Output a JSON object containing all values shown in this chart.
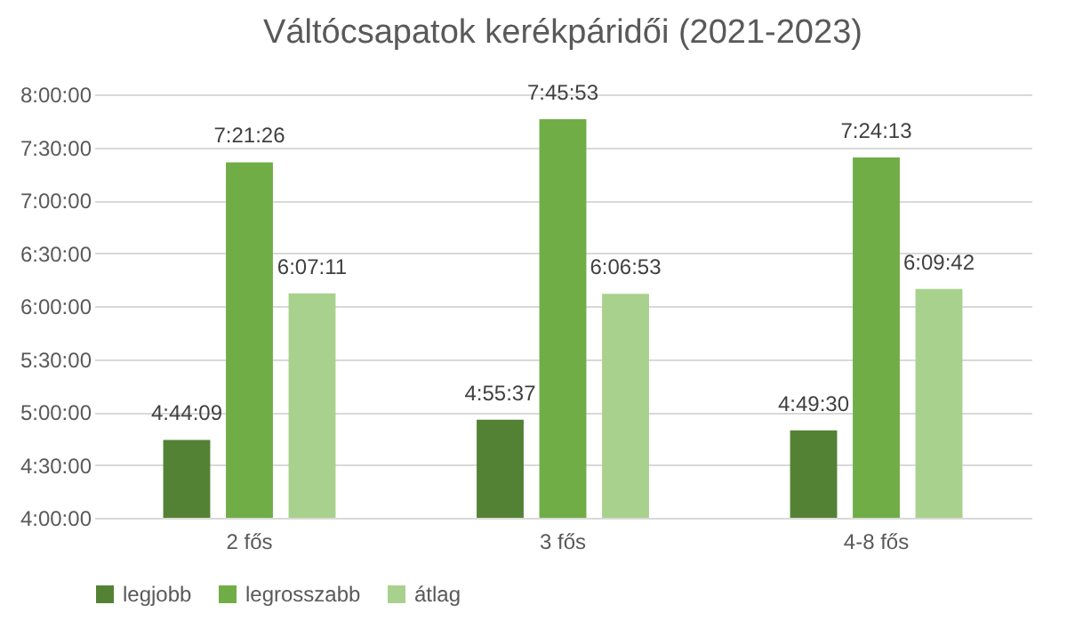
{
  "chart_data": {
    "type": "bar",
    "title": "Váltócsapatok kerékpáridői (2021-2023)",
    "categories": [
      "2 fős",
      "3 fős",
      "4-8 fős"
    ],
    "series": [
      {
        "name": "legjobb",
        "color": "#548235",
        "values": [
          4.73583,
          4.92694,
          4.825
        ],
        "value_labels": [
          "4:44:09",
          "4:55:37",
          "4:49:30"
        ]
      },
      {
        "name": "legrosszabb",
        "color": "#70ad47",
        "values": [
          7.35722,
          7.76472,
          7.40361
        ],
        "value_labels": [
          "7:21:26",
          "7:45:53",
          "7:24:13"
        ]
      },
      {
        "name": "átlag",
        "color": "#a9d18e",
        "values": [
          6.11972,
          6.11472,
          6.16167
        ],
        "value_labels": [
          "6:07:11",
          "6:06:53",
          "6:09:42"
        ]
      }
    ],
    "ylim": [
      4,
      8
    ],
    "yticks": [
      {
        "value": 4,
        "label": "4:00:00"
      },
      {
        "value": 4.5,
        "label": "4:30:00"
      },
      {
        "value": 5,
        "label": "5:00:00"
      },
      {
        "value": 5.5,
        "label": "5:30:00"
      },
      {
        "value": 6,
        "label": "6:00:00"
      },
      {
        "value": 6.5,
        "label": "6:30:00"
      },
      {
        "value": 7,
        "label": "7:00:00"
      },
      {
        "value": 7.5,
        "label": "7:30:00"
      },
      {
        "value": 8,
        "label": "8:00:00"
      }
    ],
    "grid": "y",
    "legend": "bottom"
  }
}
